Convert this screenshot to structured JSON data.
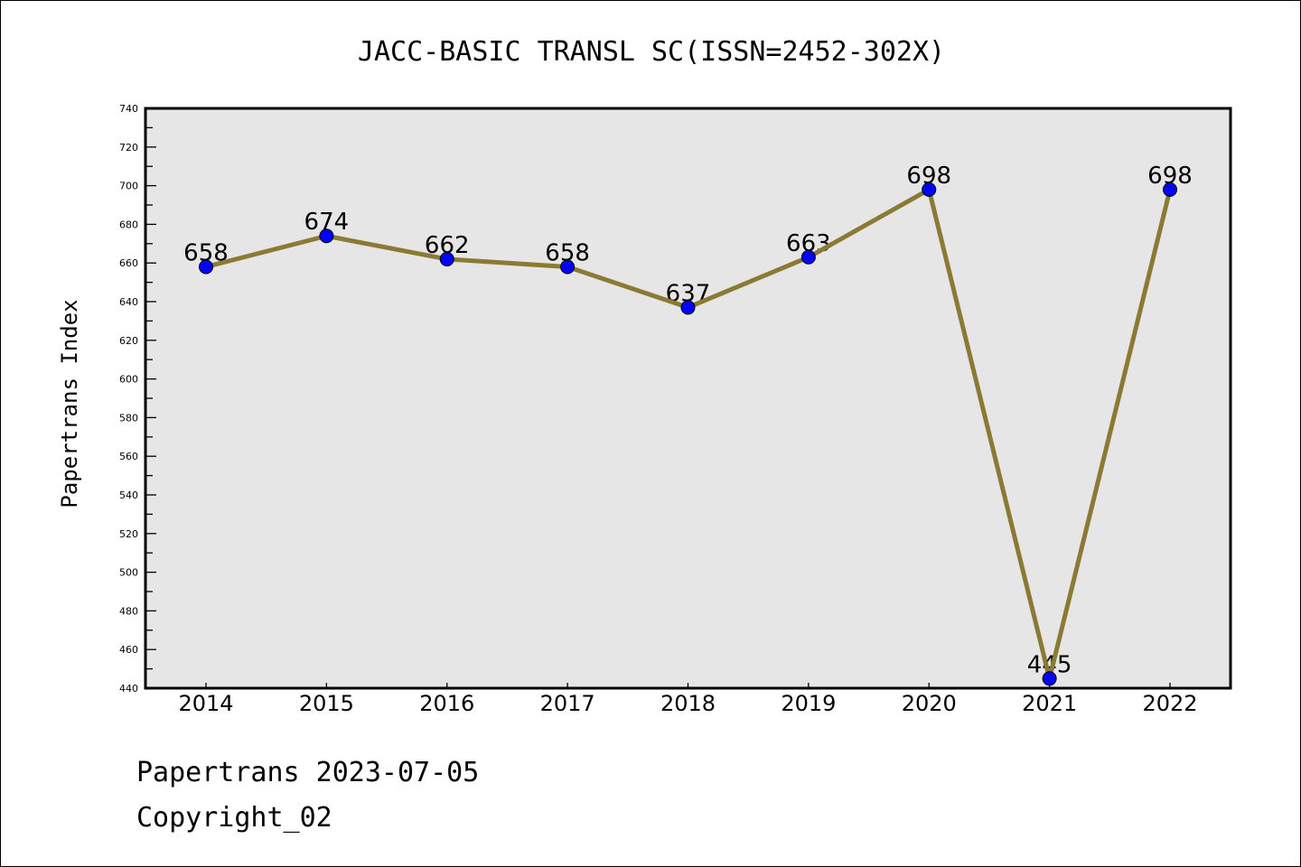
{
  "chart_data": {
    "type": "line",
    "title": "JACC-BASIC TRANSL SC(ISSN=2452-302X)",
    "xlabel": "",
    "ylabel": "Papertrans Index",
    "categories": [
      "2014",
      "2015",
      "2016",
      "2017",
      "2018",
      "2019",
      "2020",
      "2021",
      "2022"
    ],
    "values": [
      658,
      674,
      662,
      658,
      637,
      663,
      698,
      445,
      698
    ],
    "ylim": [
      440,
      740
    ],
    "yticks": [
      440,
      460,
      480,
      500,
      520,
      540,
      560,
      580,
      600,
      620,
      640,
      660,
      680,
      700,
      720,
      740
    ],
    "grid": false,
    "line_color": "#8b7a34",
    "marker_color": "#0000ff",
    "background": "#e6e6e6"
  },
  "footer": {
    "line1": "Papertrans 2023-07-05",
    "line2": "Copyright_02"
  }
}
